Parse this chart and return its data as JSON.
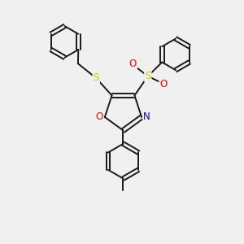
{
  "background_color": "#f0f0f0",
  "bond_color": "#1a1a1a",
  "atom_colors": {
    "S": "#cccc00",
    "O": "#ff0000",
    "N": "#0000ff",
    "C": "#1a1a1a"
  },
  "figsize": [
    3.0,
    3.0
  ],
  "dpi": 100,
  "lw": 1.4,
  "font_size": 8.5
}
